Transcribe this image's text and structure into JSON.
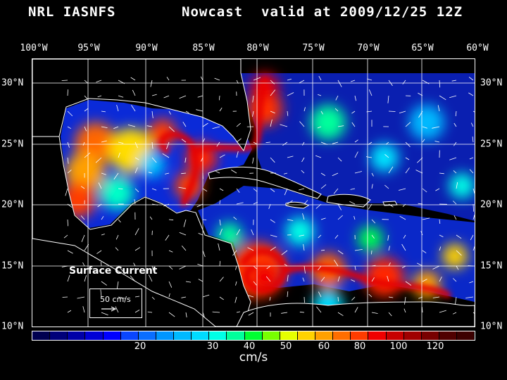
{
  "title": {
    "model": "NRL IASNFS",
    "product": "Nowcast",
    "valid": "valid at 2009/12/25 12Z"
  },
  "axes": {
    "longitudes": [
      "100°W",
      "95°W",
      "90°W",
      "85°W",
      "80°W",
      "75°W",
      "70°W",
      "65°W",
      "60°W"
    ],
    "latitudes": [
      "30°N",
      "25°N",
      "20°N",
      "15°N",
      "10°N"
    ]
  },
  "legend": {
    "layer": "Surface Current",
    "reference_vector": "50 cm/s",
    "units": "cm/s",
    "tick_labels": [
      "20",
      "30",
      "40",
      "50",
      "60",
      "80",
      "100",
      "120"
    ],
    "colors": [
      "#000050",
      "#00007a",
      "#0000a8",
      "#0000d6",
      "#0000ff",
      "#0a46ff",
      "#0a6eff",
      "#0096ff",
      "#00b9ff",
      "#00dcff",
      "#00ffe6",
      "#00ff9b",
      "#00ff32",
      "#78ff00",
      "#e6ff00",
      "#ffd200",
      "#ffa000",
      "#ff6e00",
      "#ff3c00",
      "#f00000",
      "#c80000",
      "#a00000",
      "#780000",
      "#500000",
      "#3c0000"
    ]
  },
  "map": {
    "region": "Gulf of Mexico and Caribbean Sea",
    "lon_range": [
      "100°W",
      "60°W"
    ],
    "lat_range": [
      "10°N",
      "31°N"
    ]
  }
}
